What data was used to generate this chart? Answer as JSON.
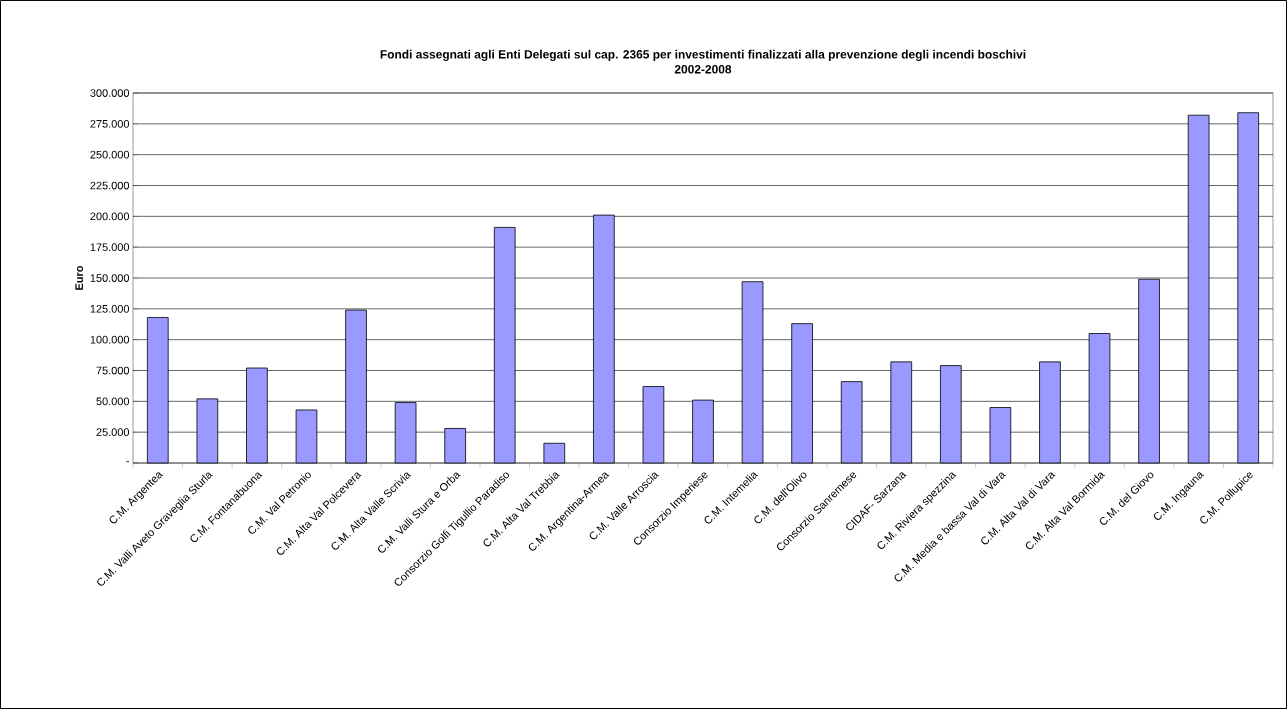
{
  "chart_data": {
    "type": "bar",
    "title": "Fondi assegnati agli Enti Delegati sul cap. 2365 per investimenti finalizzati alla prevenzione degli incendi boschivi",
    "subtitle": "2002-2008",
    "ylabel": "Euro",
    "categories": [
      "C.M. Argentea",
      "C.M. Valli Aveto Graveglia Sturla",
      "C.M. Fontanabuona",
      "C.M. Val Petronio",
      "C.M. Alta Val Polcevera",
      "C.M. Alta Valle Scrivia",
      "C.M. Valli Stura e Orba",
      "Consorzio Golfi Tigullio Paradiso",
      "C.M. Alta Val Trebbia",
      "C.M. Argentina-Armea",
      "C.M. Valle Arroscia",
      "Consorzio Imperiese",
      "C.M. Intemelia",
      "C.M. dell'Olivo",
      "Consorzio Sanremese",
      "CIDAF- Sarzana",
      "C.M. Riviera spezzina",
      "C.M. Media e bassa Val di Vara",
      "C.M. Alta Val di Vara",
      "C.M. Alta Val Bormida",
      "C.M. del Giovo",
      "C.M. Ingauna",
      "C.M. Pollupice"
    ],
    "values": [
      118000,
      52000,
      77000,
      43000,
      124000,
      49000,
      28000,
      191000,
      16000,
      201000,
      62000,
      51000,
      147000,
      113000,
      66000,
      82000,
      79000,
      45000,
      82000,
      105000,
      149000,
      282000,
      284000
    ],
    "color": "#9999ff",
    "ylim": [
      0,
      300000
    ],
    "yticks": [
      {
        "value": 0,
        "label": "-"
      },
      {
        "value": 25000,
        "label": "25.000"
      },
      {
        "value": 50000,
        "label": "50.000"
      },
      {
        "value": 75000,
        "label": "75.000"
      },
      {
        "value": 100000,
        "label": "100.000"
      },
      {
        "value": 125000,
        "label": "125.000"
      },
      {
        "value": 150000,
        "label": "150.000"
      },
      {
        "value": 175000,
        "label": "175.000"
      },
      {
        "value": 200000,
        "label": "200.000"
      },
      {
        "value": 225000,
        "label": "225.000"
      },
      {
        "value": 250000,
        "label": "250.000"
      },
      {
        "value": 275000,
        "label": "275.000"
      },
      {
        "value": 300000,
        "label": "300.000"
      }
    ],
    "grid": "y"
  }
}
